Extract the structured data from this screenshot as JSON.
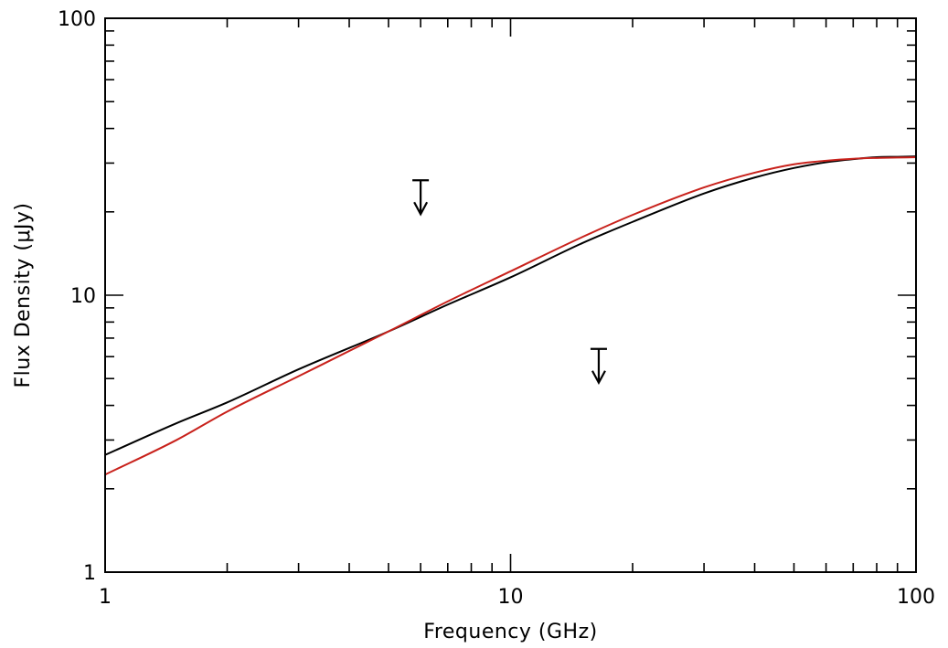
{
  "chart_data": {
    "type": "line",
    "xlabel": "Frequency (GHz)",
    "ylabel": "Flux Density (μJy)",
    "x_scale": "log",
    "y_scale": "log",
    "xlim": [
      1,
      100
    ],
    "ylim": [
      1,
      100
    ],
    "x_ticks": [
      {
        "value": 1,
        "label": "1"
      },
      {
        "value": 10,
        "label": "10"
      },
      {
        "value": 100,
        "label": "100"
      }
    ],
    "y_ticks": [
      {
        "value": 1,
        "label": "1"
      },
      {
        "value": 10,
        "label": "10"
      },
      {
        "value": 100,
        "label": "100"
      }
    ],
    "grid": false,
    "legend": "none",
    "series": [
      {
        "color": "#000000",
        "x": [
          1,
          1.5,
          2,
          3,
          5,
          7,
          10,
          15,
          20,
          30,
          40,
          50,
          60,
          70,
          80,
          90,
          100
        ],
        "y": [
          2.65,
          3.45,
          4.1,
          5.4,
          7.4,
          9.25,
          11.6,
          15.4,
          18.4,
          23.3,
          26.6,
          28.8,
          30.2,
          31.0,
          31.5,
          31.6,
          31.7
        ]
      },
      {
        "color": "#c8211b",
        "x": [
          1,
          1.5,
          2,
          3,
          5,
          7,
          10,
          15,
          20,
          30,
          40,
          50,
          60,
          70,
          80,
          90,
          100
        ],
        "y": [
          2.25,
          3.0,
          3.8,
          5.1,
          7.4,
          9.5,
          12.2,
          16.2,
          19.5,
          24.5,
          27.7,
          29.7,
          30.6,
          31.1,
          31.3,
          31.4,
          31.5
        ]
      }
    ],
    "upper_limits": [
      {
        "x": 6.0,
        "y": 26.0,
        "color": "#000000"
      },
      {
        "x": 16.5,
        "y": 6.4,
        "color": "#000000"
      }
    ]
  }
}
